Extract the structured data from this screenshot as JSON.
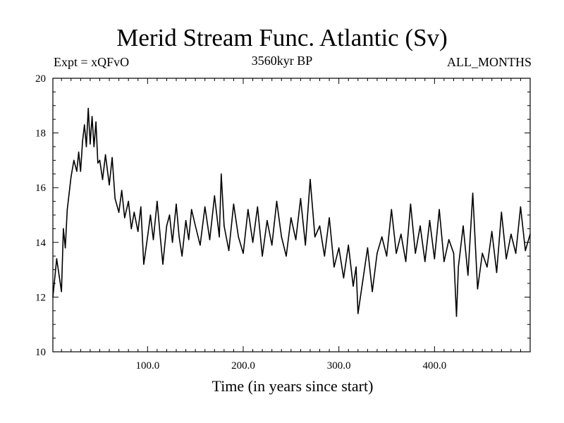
{
  "header": {
    "title": "Merid Stream Func. Atlantic (Sv)",
    "expt": "Expt = xQFvO",
    "period": "3560kyr BP",
    "months": "ALL_MONTHS"
  },
  "chart_data": {
    "type": "line",
    "title": "Merid Stream Func. Atlantic (Sv)",
    "xlabel": "Time (in years since start)",
    "ylabel": "",
    "xlim": [
      1,
      500
    ],
    "ylim": [
      10,
      20
    ],
    "x_ticks": [
      100,
      200,
      300,
      400
    ],
    "x_tick_labels": [
      "100.0",
      "200.0",
      "300.0",
      "400.0"
    ],
    "y_ticks": [
      10,
      12,
      14,
      16,
      18,
      20
    ],
    "y_tick_labels": [
      "10",
      "12",
      "14",
      "16",
      "18",
      "20"
    ],
    "grid": false,
    "series": [
      {
        "name": "Merid Stream Func. Atlantic",
        "x": [
          1,
          5,
          10,
          12,
          14,
          16,
          18,
          20,
          23,
          26,
          28,
          30,
          32,
          34,
          36,
          38,
          40,
          42,
          44,
          46,
          48,
          50,
          53,
          56,
          60,
          63,
          66,
          70,
          73,
          76,
          80,
          83,
          86,
          90,
          93,
          96,
          100,
          103,
          106,
          110,
          113,
          116,
          120,
          123,
          126,
          130,
          133,
          136,
          140,
          143,
          146,
          150,
          155,
          160,
          165,
          170,
          175,
          177,
          180,
          185,
          190,
          195,
          200,
          205,
          210,
          215,
          220,
          225,
          230,
          235,
          240,
          245,
          250,
          255,
          260,
          265,
          270,
          275,
          280,
          285,
          290,
          295,
          300,
          305,
          310,
          315,
          318,
          320,
          325,
          330,
          335,
          340,
          345,
          350,
          355,
          360,
          365,
          370,
          375,
          380,
          385,
          390,
          395,
          400,
          405,
          410,
          415,
          420,
          423,
          425,
          430,
          435,
          440,
          445,
          450,
          455,
          460,
          465,
          470,
          475,
          480,
          485,
          490,
          495,
          500
        ],
        "values": [
          12.0,
          13.4,
          12.2,
          14.5,
          13.8,
          15.2,
          15.8,
          16.4,
          17.0,
          16.6,
          17.3,
          16.6,
          17.7,
          18.3,
          17.5,
          18.9,
          17.6,
          18.6,
          17.5,
          18.4,
          16.9,
          17.0,
          16.3,
          17.2,
          16.1,
          17.1,
          15.6,
          15.1,
          15.9,
          14.9,
          15.5,
          14.5,
          15.1,
          14.4,
          15.3,
          13.2,
          14.2,
          15.0,
          14.1,
          15.5,
          14.3,
          13.2,
          14.6,
          15.0,
          14.0,
          15.4,
          14.2,
          13.5,
          14.8,
          14.1,
          15.2,
          14.6,
          13.9,
          15.3,
          14.1,
          15.7,
          14.2,
          16.5,
          14.6,
          13.7,
          15.4,
          14.2,
          13.6,
          15.2,
          14.0,
          15.3,
          13.5,
          14.8,
          13.9,
          15.5,
          14.2,
          13.5,
          14.9,
          14.1,
          15.6,
          13.9,
          16.3,
          14.2,
          14.6,
          13.5,
          14.9,
          13.1,
          13.8,
          12.7,
          13.9,
          12.4,
          13.1,
          11.4,
          12.6,
          13.8,
          12.2,
          13.6,
          14.2,
          13.5,
          15.2,
          13.6,
          14.3,
          13.3,
          15.4,
          13.6,
          14.6,
          13.3,
          14.8,
          13.4,
          15.2,
          13.3,
          14.1,
          13.6,
          11.3,
          13.1,
          14.6,
          12.8,
          15.8,
          12.3,
          13.6,
          13.1,
          14.4,
          12.9,
          15.1,
          13.4,
          14.3,
          13.6,
          15.3,
          13.7,
          14.3
        ]
      }
    ]
  }
}
